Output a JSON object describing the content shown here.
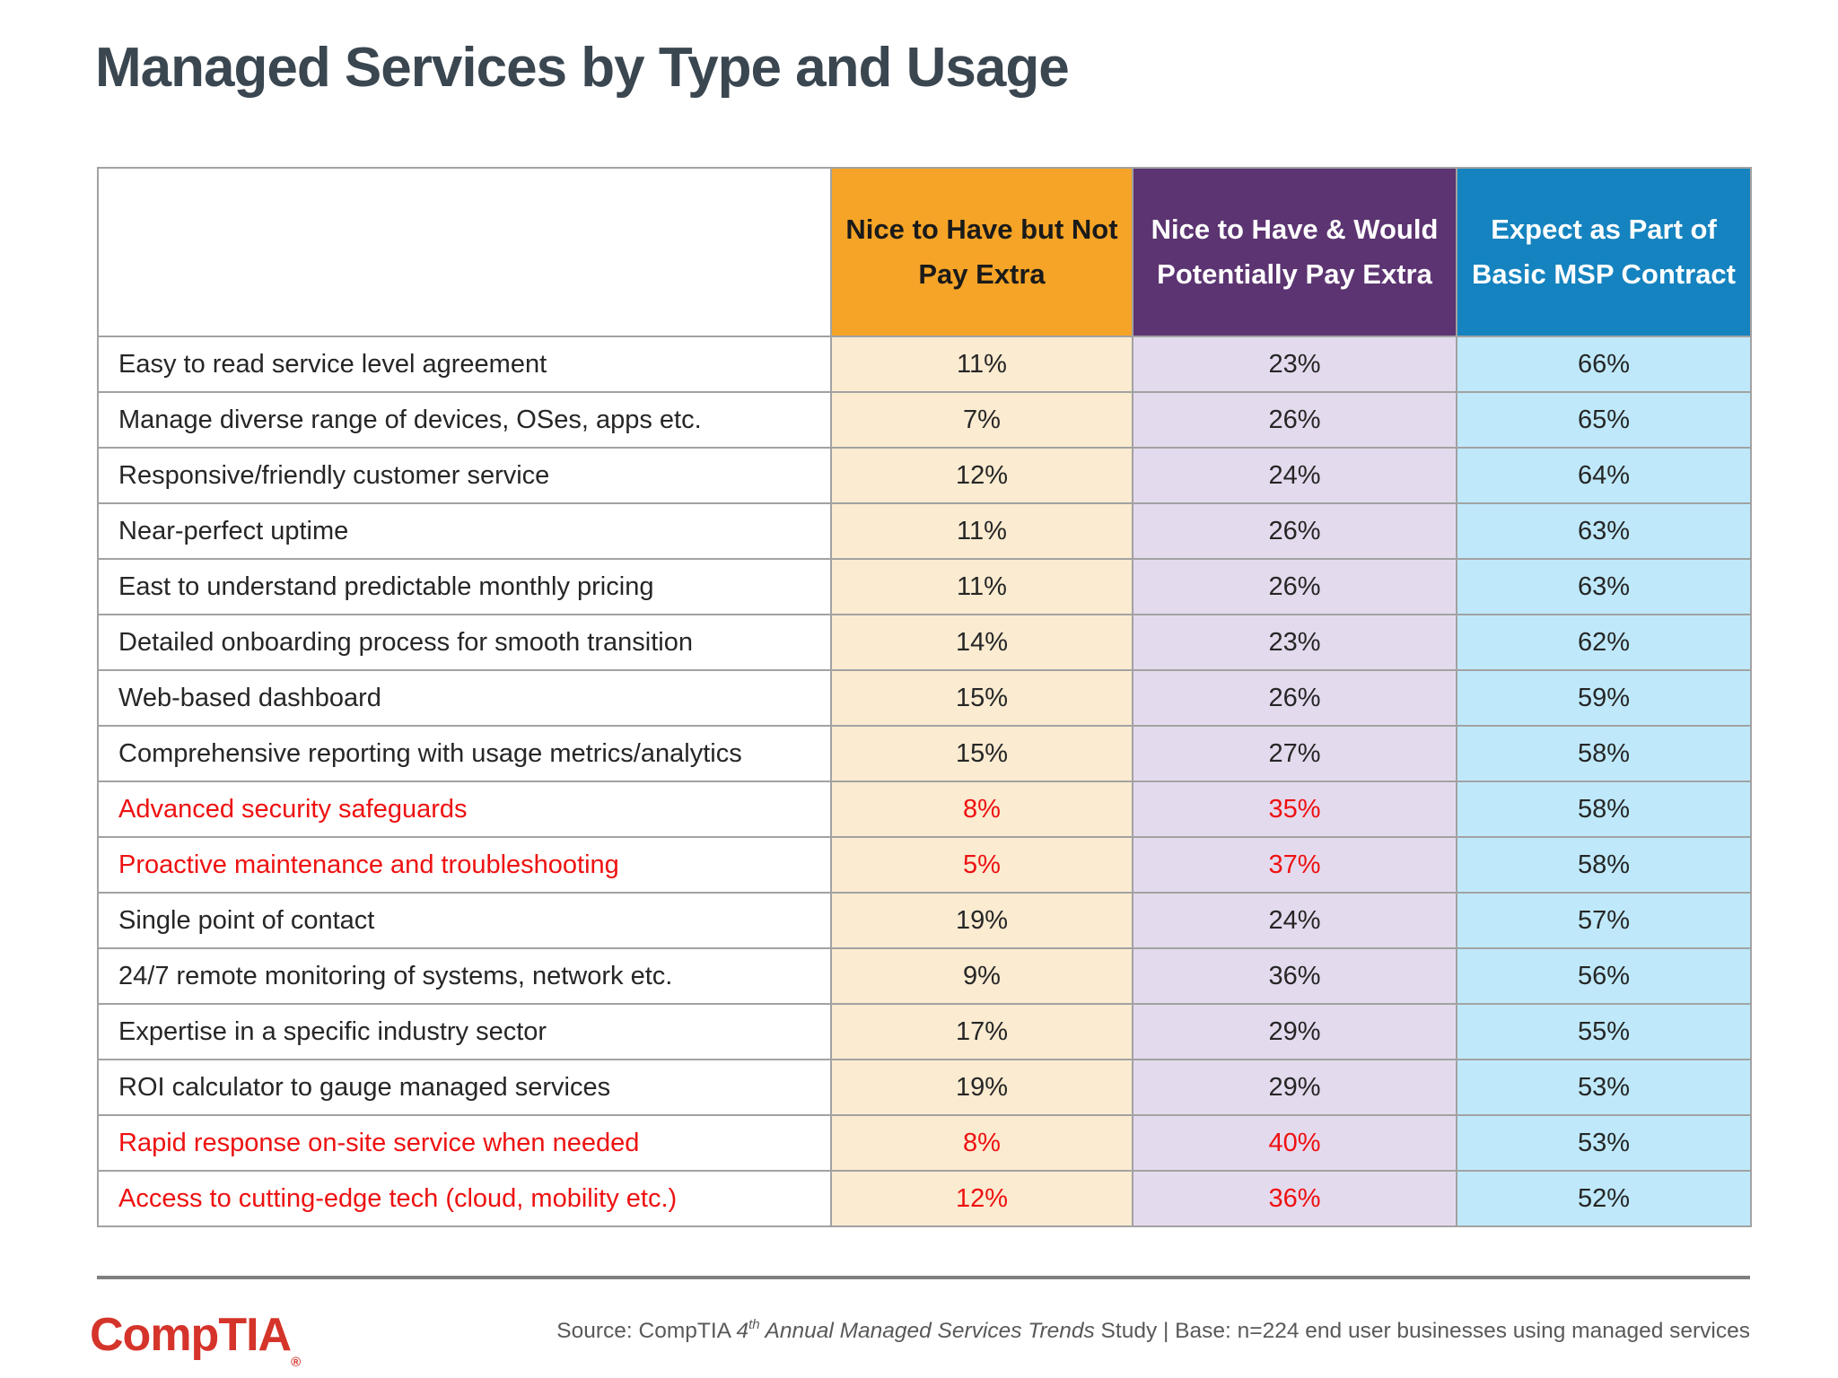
{
  "page": {
    "title": "Managed Services by Type and Usage"
  },
  "colors": {
    "orange": "#f5a427",
    "purple": "#5c3471",
    "blue": "#1583bf",
    "orangeTint": "#faebd1",
    "purpleTint": "#e4daed",
    "blueTint": "#bfe9fa",
    "red": "#ee1111",
    "title": "#3a4650",
    "grid": "#a2a2a2",
    "rule": "#7f7f7f",
    "logoRed": "#d5342b",
    "sourceGray": "#595959"
  },
  "table": {
    "columns": [
      {
        "label": "Nice to Have but Not Pay Extra"
      },
      {
        "label": "Nice to Have & Would Potentially Pay Extra"
      },
      {
        "label": "Expect as Part of Basic MSP Contract"
      }
    ],
    "rows": [
      {
        "label": "Easy to read service level agreement",
        "values": [
          "11%",
          "23%",
          "66%"
        ],
        "highlight": false
      },
      {
        "label": "Manage diverse range of devices, OSes, apps etc.",
        "values": [
          "7%",
          "26%",
          "65%"
        ],
        "highlight": false
      },
      {
        "label": "Responsive/friendly customer service",
        "values": [
          "12%",
          "24%",
          "64%"
        ],
        "highlight": false
      },
      {
        "label": "Near-perfect uptime",
        "values": [
          "11%",
          "26%",
          "63%"
        ],
        "highlight": false
      },
      {
        "label": "East to understand predictable monthly pricing",
        "values": [
          "11%",
          "26%",
          "63%"
        ],
        "highlight": false
      },
      {
        "label": "Detailed onboarding process for smooth transition",
        "values": [
          "14%",
          "23%",
          "62%"
        ],
        "highlight": false
      },
      {
        "label": "Web-based dashboard",
        "values": [
          "15%",
          "26%",
          "59%"
        ],
        "highlight": false
      },
      {
        "label": "Comprehensive reporting with usage metrics/analytics",
        "values": [
          "15%",
          "27%",
          "58%"
        ],
        "highlight": false
      },
      {
        "label": "Advanced security safeguards",
        "values": [
          "8%",
          "35%",
          "58%"
        ],
        "highlight": true
      },
      {
        "label": "Proactive maintenance and troubleshooting",
        "values": [
          "5%",
          "37%",
          "58%"
        ],
        "highlight": true
      },
      {
        "label": "Single point of contact",
        "values": [
          "19%",
          "24%",
          "57%"
        ],
        "highlight": false
      },
      {
        "label": "24/7 remote monitoring of systems, network etc.",
        "values": [
          "9%",
          "36%",
          "56%"
        ],
        "highlight": false
      },
      {
        "label": "Expertise in a specific industry sector",
        "values": [
          "17%",
          "29%",
          "55%"
        ],
        "highlight": false
      },
      {
        "label": "ROI calculator to gauge managed services",
        "values": [
          "19%",
          "29%",
          "53%"
        ],
        "highlight": false
      },
      {
        "label": "Rapid response on-site service when needed",
        "values": [
          "8%",
          "40%",
          "53%"
        ],
        "highlight": true
      },
      {
        "label": "Access to cutting-edge tech (cloud, mobility etc.)",
        "values": [
          "12%",
          "36%",
          "52%"
        ],
        "highlight": true
      }
    ]
  },
  "chart_data": {
    "type": "table",
    "title": "Managed Services by Type and Usage",
    "categories": [
      "Easy to read service level agreement",
      "Manage diverse range of devices, OSes, apps etc.",
      "Responsive/friendly customer service",
      "Near-perfect uptime",
      "East to understand predictable monthly pricing",
      "Detailed onboarding process for smooth transition",
      "Web-based dashboard",
      "Comprehensive reporting with usage metrics/analytics",
      "Advanced security safeguards",
      "Proactive maintenance and troubleshooting",
      "Single point of contact",
      "24/7 remote monitoring of systems, network etc.",
      "Expertise in a specific industry sector",
      "ROI calculator to gauge managed services",
      "Rapid response on-site service when needed",
      "Access to cutting-edge tech (cloud, mobility etc.)"
    ],
    "series": [
      {
        "name": "Nice to Have but Not Pay Extra",
        "unit": "%",
        "values": [
          11,
          7,
          12,
          11,
          11,
          14,
          15,
          15,
          8,
          5,
          19,
          9,
          17,
          19,
          8,
          12
        ]
      },
      {
        "name": "Nice to Have & Would Potentially Pay Extra",
        "unit": "%",
        "values": [
          23,
          26,
          24,
          26,
          26,
          23,
          26,
          27,
          35,
          37,
          24,
          36,
          29,
          29,
          40,
          36
        ]
      },
      {
        "name": "Expect as Part of Basic MSP Contract",
        "unit": "%",
        "values": [
          66,
          65,
          64,
          63,
          63,
          62,
          59,
          58,
          58,
          58,
          57,
          56,
          55,
          53,
          53,
          52
        ]
      }
    ],
    "highlighted_rows": [
      "Advanced security safeguards",
      "Proactive maintenance and troubleshooting",
      "Rapid response on-site service when needed",
      "Access to cutting-edge tech (cloud, mobility etc.)"
    ]
  },
  "footer": {
    "logo_text": "CompTIA",
    "logo_registered": "®",
    "source_prefix": "Source: CompTIA ",
    "source_num": "4",
    "source_sup": "th",
    "source_italic": " Annual Managed Services Trends",
    "source_suffix": " Study | Base: n=224 end user businesses using managed services"
  }
}
